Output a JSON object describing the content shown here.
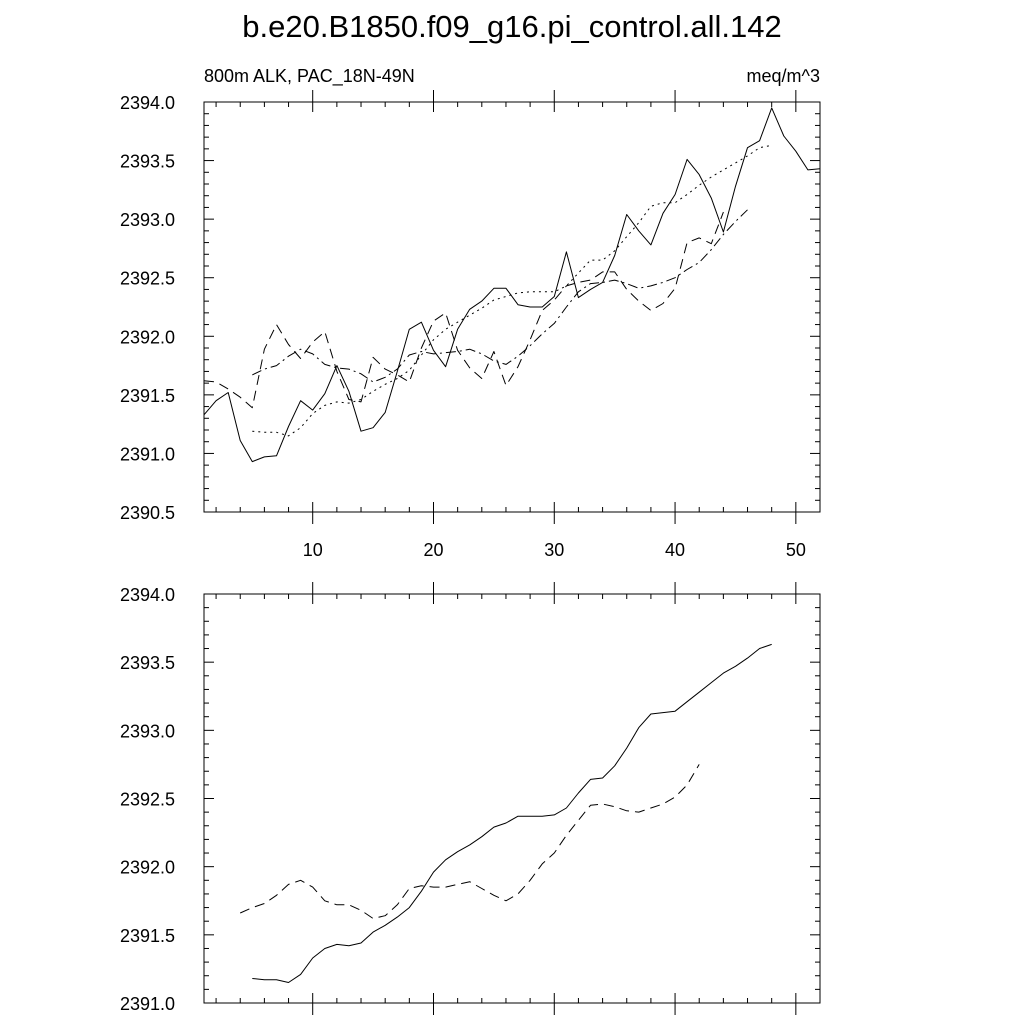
{
  "title": "b.e20.B1850.f09_g16.pi_control.all.142",
  "chart_data": [
    {
      "type": "line",
      "subtitle_left": "800m ALK, PAC_18N-49N",
      "subtitle_right": "meq/m^3",
      "xlim": [
        1,
        52
      ],
      "ylim": [
        2390.5,
        2394.0
      ],
      "x_ticks": [
        10,
        20,
        30,
        40,
        50
      ],
      "y_ticks": [
        "2390.5",
        "2391.0",
        "2391.5",
        "2392.0",
        "2392.5",
        "2393.0",
        "2393.5",
        "2394.0"
      ],
      "series": [
        {
          "style": "solid",
          "x": [
            1,
            2,
            3,
            4,
            5,
            6,
            7,
            8,
            9,
            10,
            11,
            12,
            13,
            14,
            15,
            16,
            17,
            18,
            19,
            20,
            21,
            22,
            23,
            24,
            25,
            26,
            27,
            28,
            29,
            30,
            31,
            32,
            33,
            34,
            35,
            36,
            37,
            38,
            39,
            40,
            41,
            42,
            43,
            44,
            45,
            46,
            47,
            48,
            49,
            50,
            51,
            52
          ],
          "y": [
            2391.33,
            2391.45,
            2391.52,
            2391.11,
            2390.93,
            2390.97,
            2390.98,
            2391.23,
            2391.45,
            2391.37,
            2391.51,
            2391.75,
            2391.53,
            2391.19,
            2391.22,
            2391.35,
            2391.7,
            2392.06,
            2392.12,
            2391.88,
            2391.74,
            2392.06,
            2392.23,
            2392.3,
            2392.41,
            2392.41,
            2392.27,
            2392.25,
            2392.25,
            2392.34,
            2392.72,
            2392.33,
            2392.4,
            2392.46,
            2392.69,
            2393.04,
            2392.9,
            2392.78,
            2393.05,
            2393.21,
            2393.51,
            2393.38,
            2393.18,
            2392.89,
            2393.28,
            2393.61,
            2393.67,
            2393.95,
            2393.71,
            2393.58,
            2393.42,
            2393.43
          ]
        },
        {
          "style": "dashed",
          "x": [
            1,
            2,
            3,
            4,
            5,
            6,
            7,
            8,
            9,
            10,
            11,
            12,
            13,
            14,
            15,
            16,
            17,
            18,
            19,
            20,
            21,
            22,
            23,
            24,
            25,
            26,
            27,
            28,
            29,
            30,
            31,
            32,
            33,
            34,
            35,
            36,
            37,
            38,
            39,
            40,
            41,
            42,
            43,
            44
          ],
          "y": [
            2391.62,
            2391.61,
            2391.55,
            2391.48,
            2391.39,
            2391.89,
            2392.1,
            2391.93,
            2391.81,
            2391.95,
            2392.04,
            2391.7,
            2391.46,
            2391.44,
            2391.82,
            2391.72,
            2391.67,
            2391.61,
            2391.9,
            2392.13,
            2392.2,
            2391.88,
            2391.73,
            2391.64,
            2391.87,
            2391.58,
            2391.74,
            2391.97,
            2392.22,
            2392.31,
            2392.43,
            2392.46,
            2392.48,
            2392.55,
            2392.55,
            2392.4,
            2392.3,
            2392.22,
            2392.28,
            2392.41,
            2392.8,
            2392.84,
            2392.79,
            2393.06
          ]
        },
        {
          "style": "dotted",
          "x": [
            5,
            6,
            7,
            8,
            9,
            10,
            11,
            12,
            13,
            14,
            15,
            16,
            17,
            18,
            19,
            20,
            21,
            22,
            23,
            24,
            25,
            26,
            27,
            28,
            29,
            30,
            31,
            32,
            33,
            34,
            35,
            36,
            37,
            38,
            39,
            40,
            41,
            42,
            43,
            44,
            45,
            46,
            47,
            48
          ],
          "y": [
            2391.19,
            2391.18,
            2391.18,
            2391.15,
            2391.22,
            2391.34,
            2391.41,
            2391.44,
            2391.43,
            2391.46,
            2391.53,
            2391.59,
            2391.64,
            2391.71,
            2391.84,
            2391.97,
            2392.06,
            2392.12,
            2392.18,
            2392.24,
            2392.31,
            2392.34,
            2392.37,
            2392.38,
            2392.38,
            2392.38,
            2392.43,
            2392.54,
            2392.65,
            2392.65,
            2392.73,
            2392.85,
            2392.97,
            2393.11,
            2393.14,
            2393.14,
            2393.21,
            2393.29,
            2393.36,
            2393.42,
            2393.48,
            2393.54,
            2393.61,
            2393.63
          ]
        },
        {
          "style": "dash-dot",
          "x": [
            5,
            6,
            7,
            8,
            9,
            10,
            11,
            12,
            13,
            14,
            15,
            16,
            17,
            18,
            19,
            20,
            21,
            22,
            23,
            24,
            25,
            26,
            27,
            28,
            29,
            30,
            31,
            32,
            33,
            34,
            35,
            36,
            37,
            38,
            39,
            40,
            41,
            42,
            43,
            44,
            45,
            46
          ],
          "y": [
            2391.67,
            2391.72,
            2391.75,
            2391.83,
            2391.89,
            2391.85,
            2391.76,
            2391.73,
            2391.72,
            2391.68,
            2391.61,
            2391.65,
            2391.72,
            2391.84,
            2391.87,
            2391.85,
            2391.86,
            2391.87,
            2391.89,
            2391.85,
            2391.79,
            2391.76,
            2391.83,
            2391.92,
            2392.02,
            2392.11,
            2392.25,
            2392.38,
            2392.45,
            2392.46,
            2392.48,
            2392.45,
            2392.41,
            2392.43,
            2392.46,
            2392.5,
            2392.57,
            2392.63,
            2392.74,
            2392.87,
            2392.98,
            2393.08
          ]
        }
      ]
    },
    {
      "type": "line",
      "xlim": [
        1,
        52
      ],
      "ylim": [
        2391.0,
        2394.0
      ],
      "x_ticks": [
        10,
        20,
        30,
        40,
        50
      ],
      "y_ticks": [
        "2391.0",
        "2391.5",
        "2392.0",
        "2392.5",
        "2393.0",
        "2393.5",
        "2394.0"
      ],
      "series": [
        {
          "style": "solid",
          "x": [
            5,
            6,
            7,
            8,
            9,
            10,
            11,
            12,
            13,
            14,
            15,
            16,
            17,
            18,
            19,
            20,
            21,
            22,
            23,
            24,
            25,
            26,
            27,
            28,
            29,
            30,
            31,
            32,
            33,
            34,
            35,
            36,
            37,
            38,
            39,
            40,
            41,
            42,
            43,
            44,
            45,
            46,
            47,
            48
          ],
          "y": [
            2391.18,
            2391.17,
            2391.17,
            2391.15,
            2391.21,
            2391.33,
            2391.4,
            2391.43,
            2391.42,
            2391.44,
            2391.52,
            2391.57,
            2391.63,
            2391.7,
            2391.82,
            2391.96,
            2392.05,
            2392.11,
            2392.16,
            2392.22,
            2392.29,
            2392.32,
            2392.37,
            2392.37,
            2392.37,
            2392.38,
            2392.43,
            2392.54,
            2392.64,
            2392.65,
            2392.74,
            2392.87,
            2393.02,
            2393.12,
            2393.13,
            2393.14,
            2393.21,
            2393.28,
            2393.35,
            2393.42,
            2393.47,
            2393.53,
            2393.6,
            2393.63
          ]
        },
        {
          "style": "dashed",
          "x": [
            4,
            5,
            6,
            7,
            8,
            9,
            10,
            11,
            12,
            13,
            14,
            15,
            16,
            17,
            18,
            19,
            20,
            21,
            22,
            23,
            24,
            25,
            26,
            27,
            28,
            29,
            30,
            31,
            32,
            33,
            34,
            35,
            36,
            37,
            38,
            39,
            40,
            41,
            42
          ],
          "y": [
            2391.66,
            2391.7,
            2391.73,
            2391.79,
            2391.87,
            2391.9,
            2391.85,
            2391.75,
            2391.72,
            2391.72,
            2391.68,
            2391.62,
            2391.64,
            2391.72,
            2391.84,
            2391.86,
            2391.85,
            2391.85,
            2391.87,
            2391.89,
            2391.84,
            2391.79,
            2391.75,
            2391.8,
            2391.9,
            2392.02,
            2392.1,
            2392.23,
            2392.34,
            2392.45,
            2392.46,
            2392.44,
            2392.41,
            2392.4,
            2392.43,
            2392.46,
            2392.51,
            2392.6,
            2392.75
          ]
        }
      ]
    }
  ]
}
